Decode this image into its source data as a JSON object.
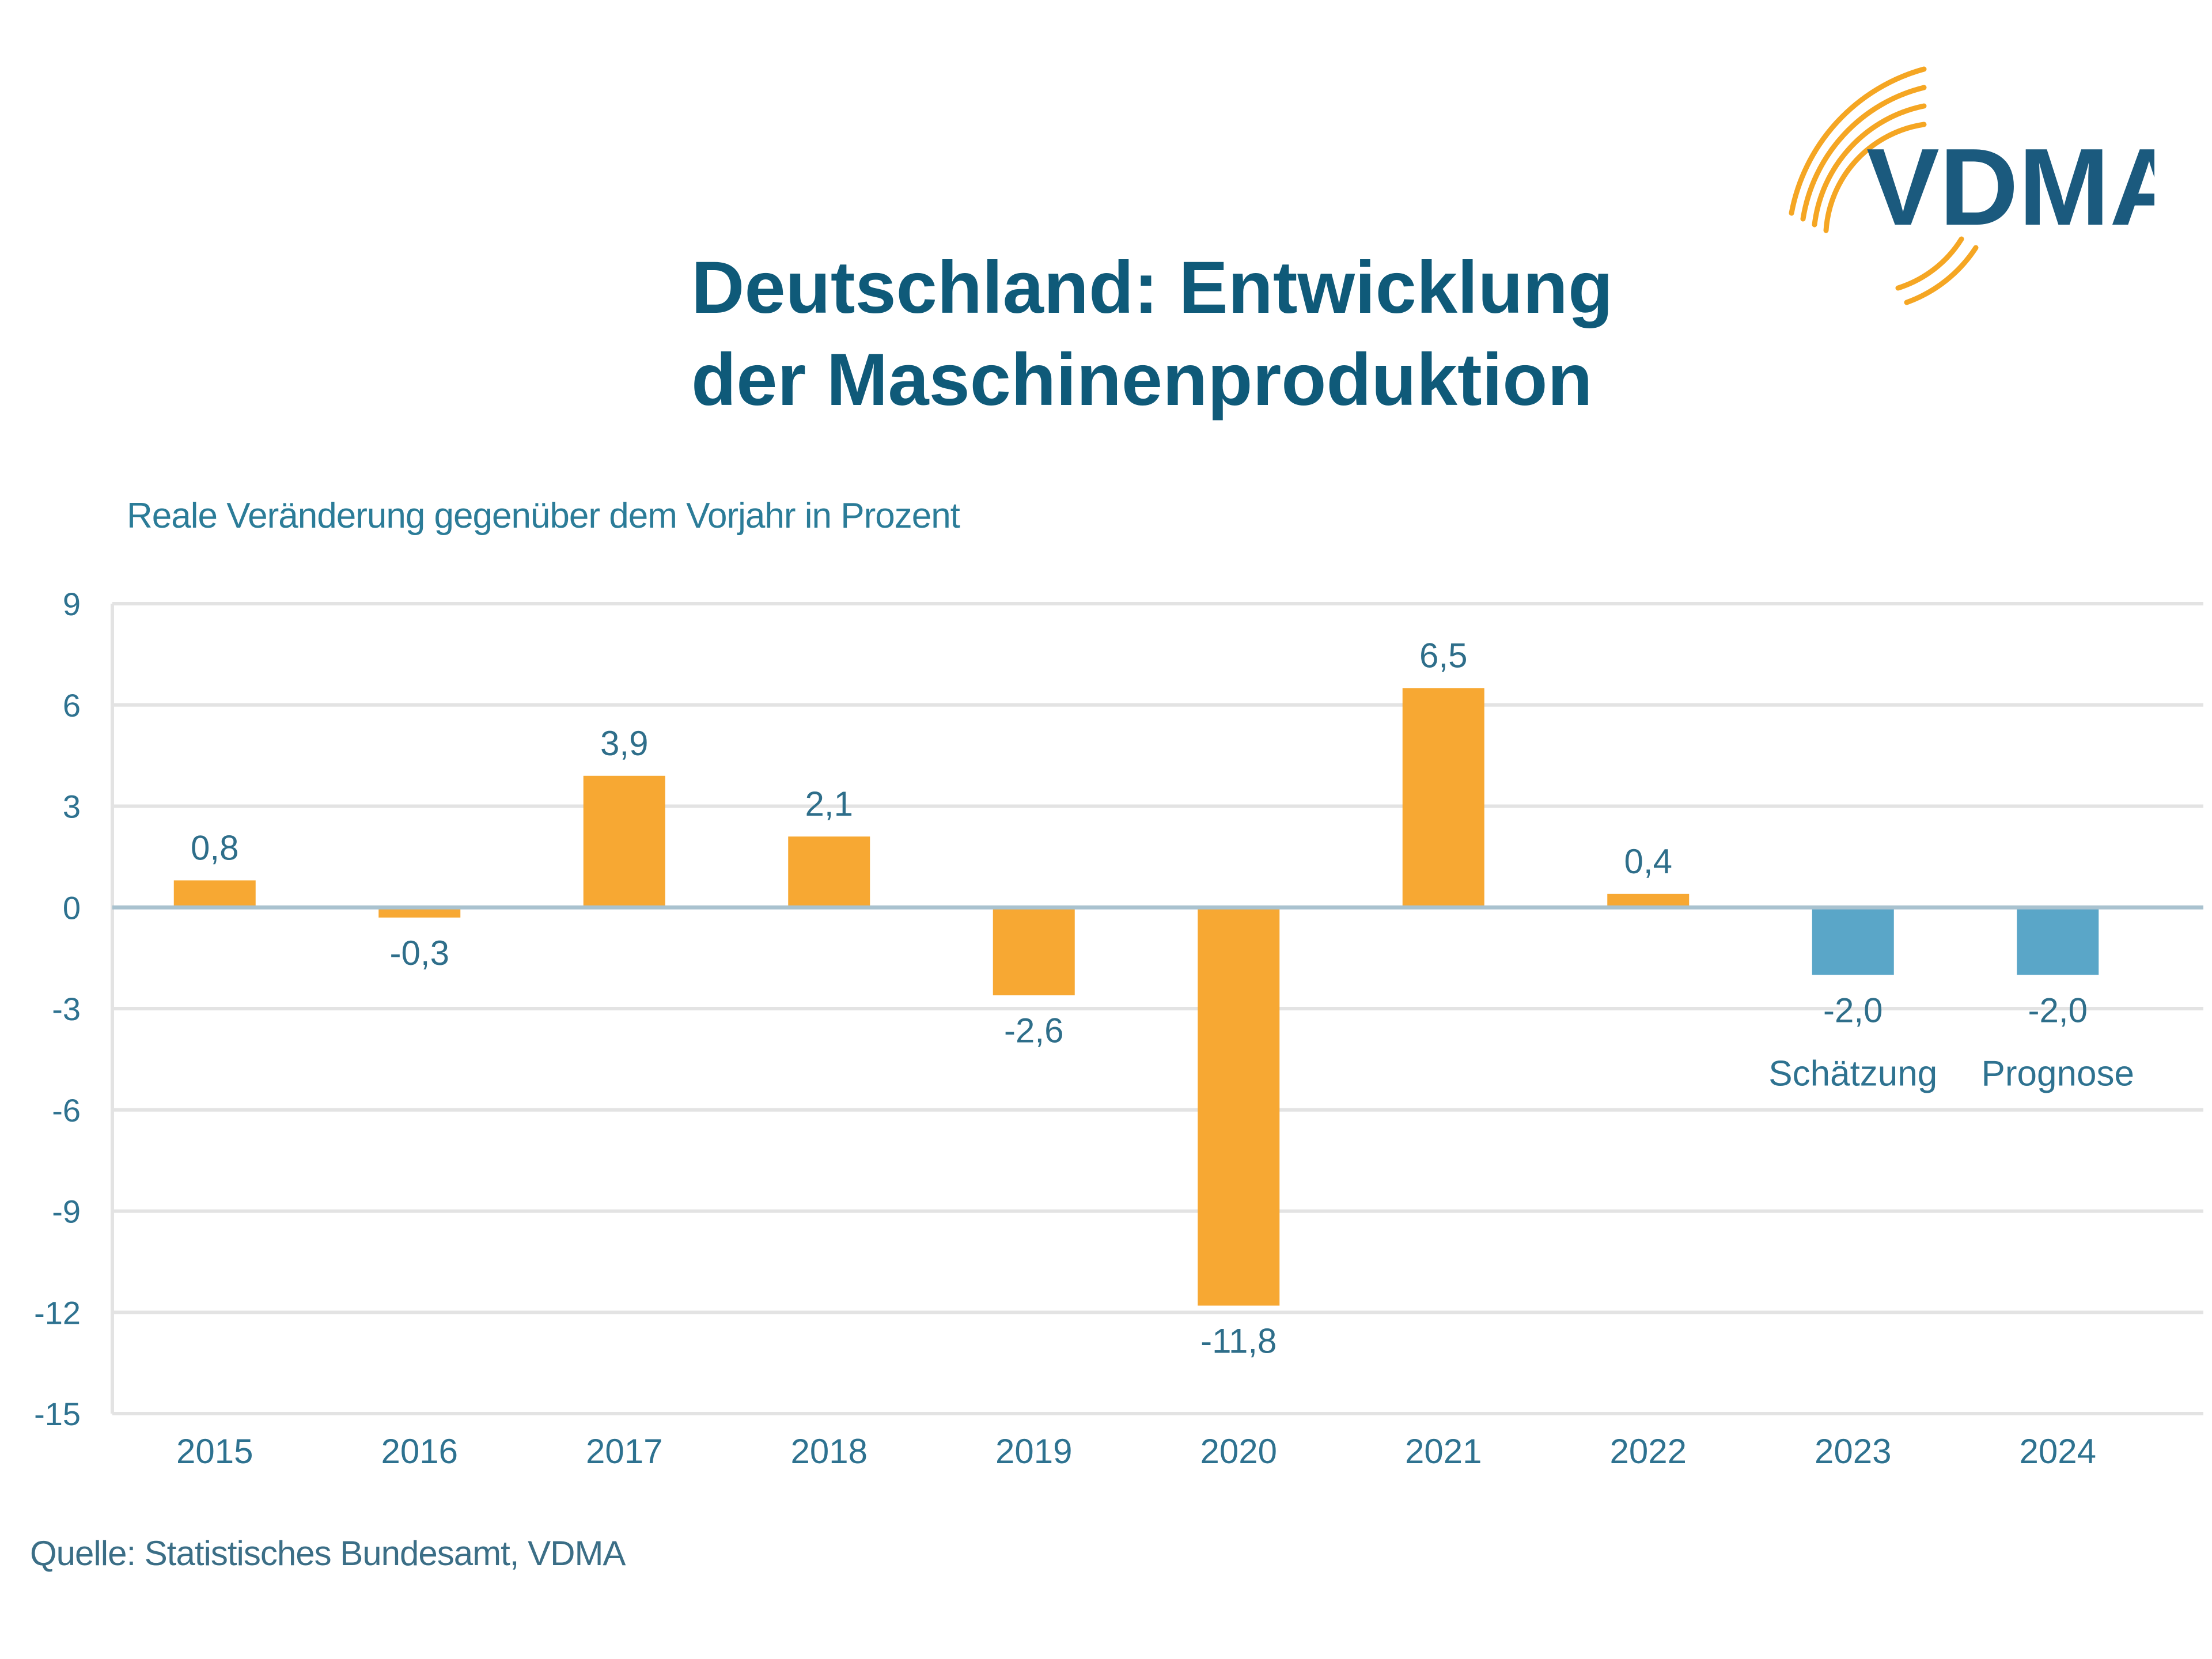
{
  "logo": {
    "text": "VDMA",
    "text_color": "#1b5a7e",
    "arc_color": "#f5a623"
  },
  "colors": {
    "actual": "#f7a833",
    "forecast": "#5aa6c8",
    "title": "#0f5a79",
    "grid": "#e3e3e3",
    "axis": "#a9c2cf"
  },
  "chart_data": {
    "type": "bar",
    "title": [
      "Deutschland: Entwicklung",
      "der Maschinenproduktion"
    ],
    "subtitle": "Reale Veränderung gegenüber dem Vorjahr in Prozent",
    "categories": [
      "2015",
      "2016",
      "2017",
      "2018",
      "2019",
      "2020",
      "2021",
      "2022",
      "2023",
      "2024"
    ],
    "values": [
      0.8,
      -0.3,
      3.9,
      2.1,
      -2.6,
      -11.8,
      6.5,
      0.4,
      -2.0,
      -2.0
    ],
    "value_labels": [
      "0,8",
      "-0,3",
      "3,9",
      "2,1",
      "-2,6",
      "-11,8",
      "6,5",
      "0,4",
      "-2,0",
      "-2,0"
    ],
    "bar_kind": [
      "actual",
      "actual",
      "actual",
      "actual",
      "actual",
      "actual",
      "actual",
      "actual",
      "forecast",
      "forecast"
    ],
    "annotations": [
      "",
      "",
      "",
      "",
      "",
      "",
      "",
      "",
      "Schätzung",
      "Prognose"
    ],
    "yticks": [
      9,
      6,
      3,
      0,
      -3,
      -6,
      -9,
      -12,
      -15
    ],
    "ylim": [
      -15,
      9
    ],
    "grid": true,
    "source": "Quelle: Statistisches Bundesamt, VDMA"
  }
}
